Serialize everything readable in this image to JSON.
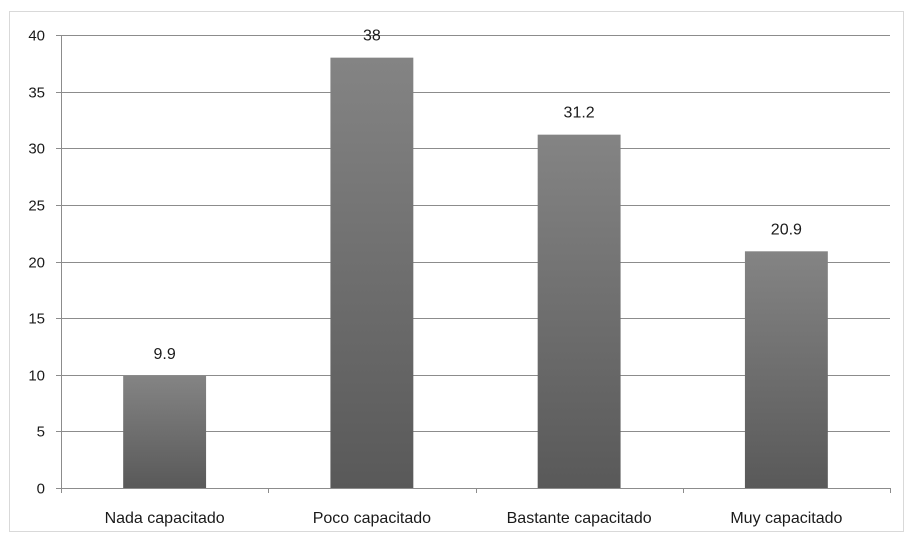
{
  "chart_data": {
    "type": "bar",
    "title": "",
    "xlabel": "",
    "ylabel": "",
    "categories": [
      "Nada capacitado",
      "Poco capacitado",
      "Bastante capacitado",
      "Muy capacitado"
    ],
    "values": [
      9.9,
      38,
      31.2,
      20.9
    ],
    "value_labels": [
      "9.9",
      "38",
      "31.2",
      "20.9"
    ],
    "ylim": [
      0,
      40
    ],
    "yticks": [
      0,
      5,
      10,
      15,
      20,
      25,
      30,
      35,
      40
    ],
    "grid": true,
    "legend": "none",
    "bar_color": "#6e6e6e",
    "grid_color": "#8c8c8c"
  }
}
